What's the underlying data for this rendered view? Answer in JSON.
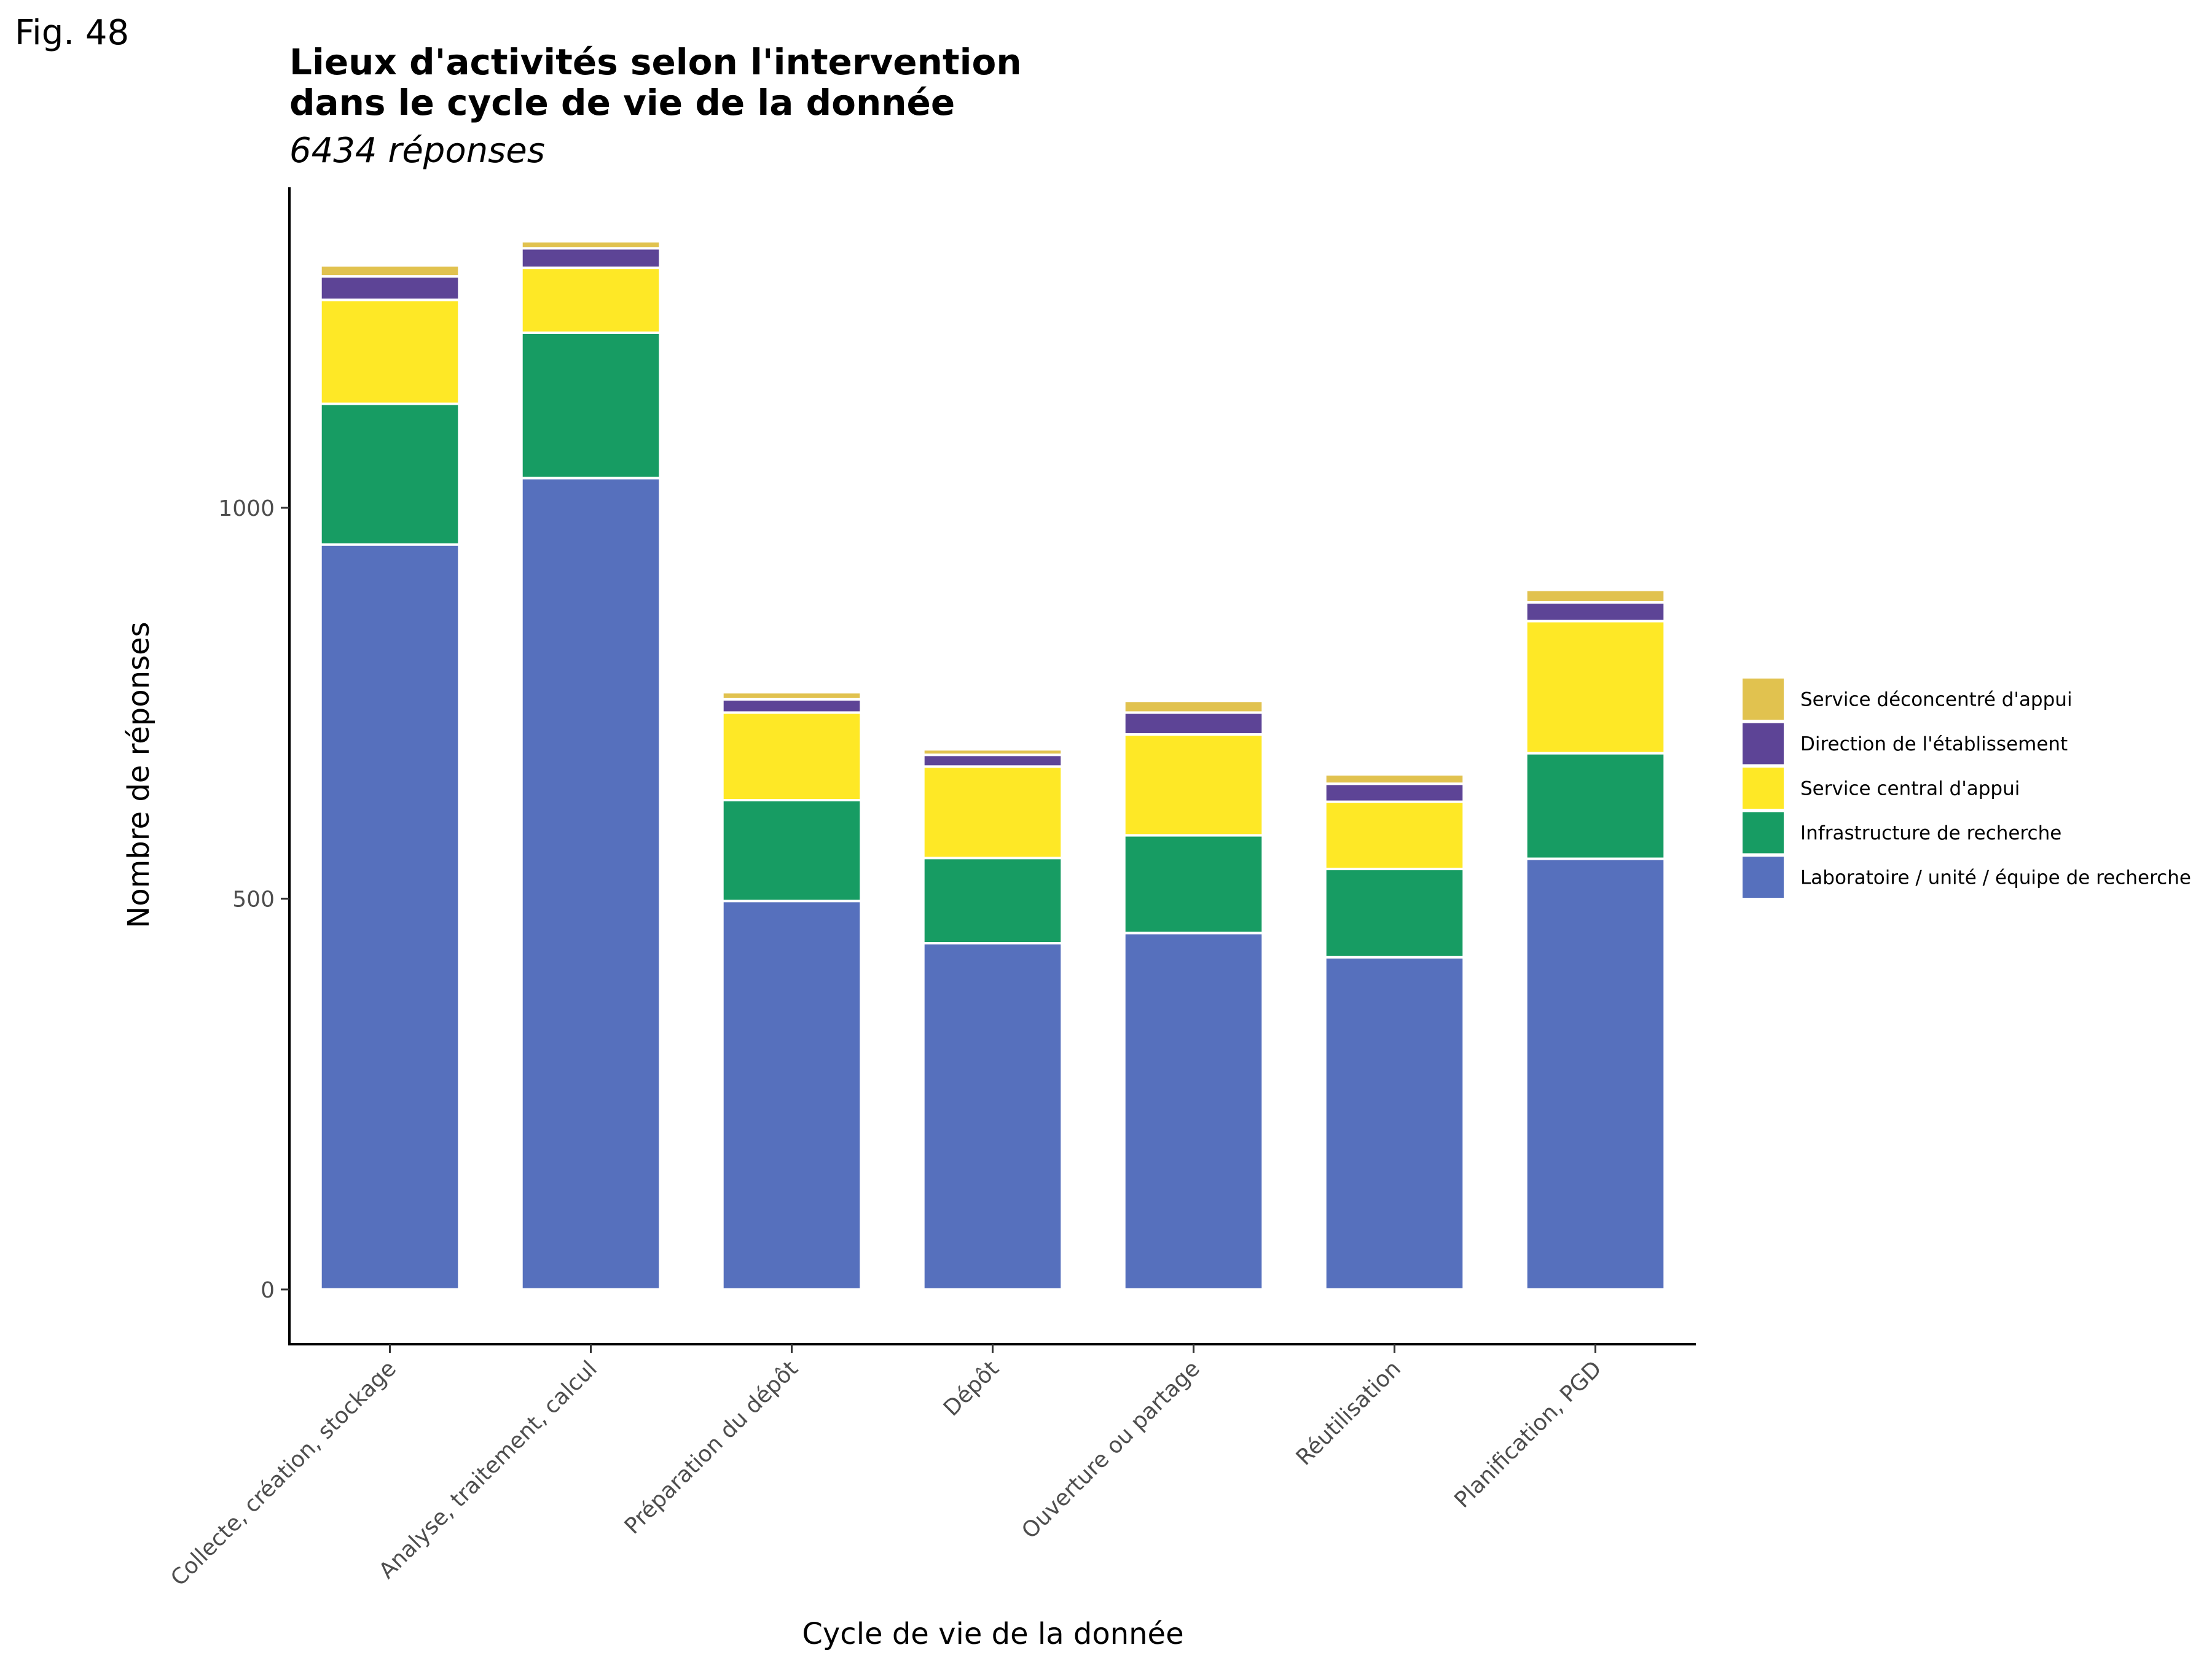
{
  "figure_label": "Fig. 48",
  "chart_data": {
    "type": "bar",
    "stacked": true,
    "title_lines": [
      "Lieux d'activités selon l'intervention",
      "dans le cycle de vie de la donnée"
    ],
    "subtitle": "6434 réponses",
    "xlabel": "Cycle de vie de la donnée",
    "ylabel": "Nombre de réponses",
    "ylim": [
      -70,
      1410
    ],
    "yticks": [
      0,
      500,
      1000
    ],
    "grid": false,
    "legend_position": "right",
    "categories": [
      "Collecte, création, stockage",
      "Analyse, traitement, calcul",
      "Préparation du dépôt",
      "Dépôt",
      "Ouverture ou partage",
      "Réutilisation",
      "Planification, PGD"
    ],
    "series": [
      {
        "name": "Laboratoire / unité / équipe de recherche",
        "color": "#5670bd",
        "values": [
          953,
          1038,
          497,
          443,
          456,
          425,
          551
        ]
      },
      {
        "name": "Infrastructure de recherche",
        "color": "#179c63",
        "values": [
          180,
          186,
          129,
          109,
          125,
          113,
          135
        ]
      },
      {
        "name": "Service central d'appui",
        "color": "#fee826",
        "values": [
          133,
          83,
          112,
          117,
          129,
          86,
          169
        ]
      },
      {
        "name": "Direction de l'établissement",
        "color": "#5d4496",
        "values": [
          30,
          25,
          17,
          15,
          28,
          23,
          24
        ]
      },
      {
        "name": "Service déconcentré d'appui",
        "color": "#e1c24f",
        "values": [
          14,
          9,
          9,
          7,
          15,
          12,
          16
        ]
      }
    ]
  }
}
